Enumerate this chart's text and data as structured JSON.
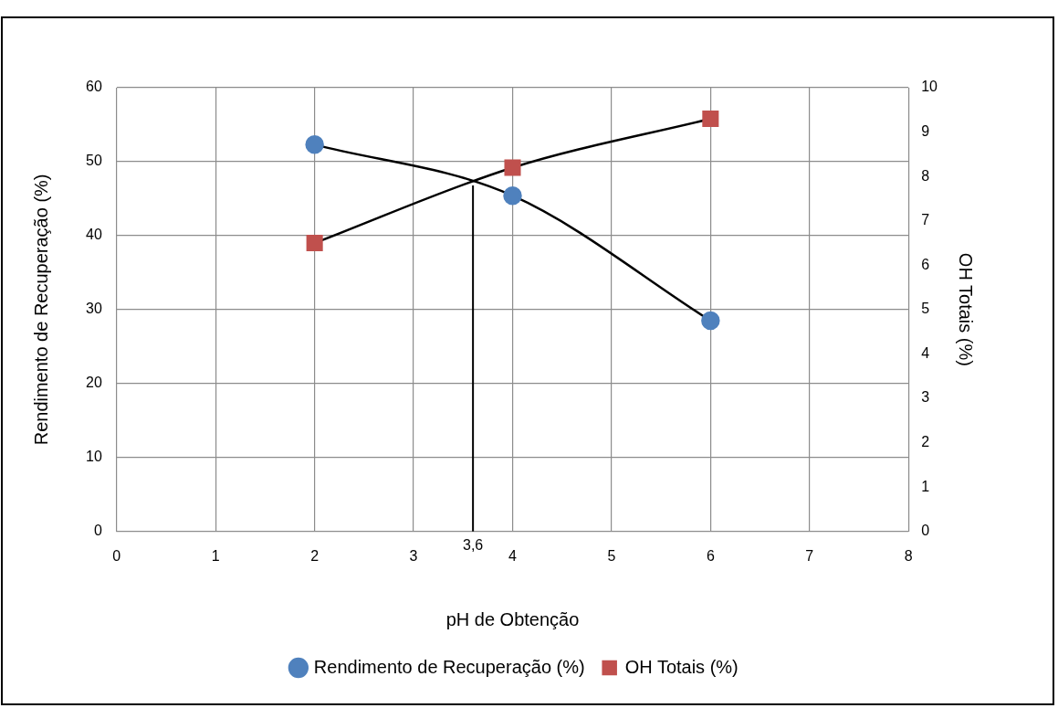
{
  "chart_data": {
    "type": "line",
    "xlabel": "pH de Obtenção",
    "ylabel": "Rendimento de Recuperação (%)",
    "y2label": "OH Totais (%)",
    "x": [
      2,
      4,
      6
    ],
    "series": [
      {
        "name": "Rendimento de Recuperação (%)",
        "color": "#4f81bd",
        "marker": "circle",
        "values": [
          52.3,
          45.4,
          28.5
        ]
      },
      {
        "name": "OH Totais (%)",
        "color": "#c0504d",
        "marker": "square",
        "axis": "y2",
        "values": [
          6.5,
          8.2,
          9.3
        ]
      }
    ],
    "xlim": [
      0,
      8
    ],
    "xticks": [
      0,
      1,
      2,
      3,
      4,
      5,
      6,
      7,
      8
    ],
    "ylim": [
      0,
      60
    ],
    "yticks": [
      0,
      10,
      20,
      30,
      40,
      50,
      60
    ],
    "y2lim": [
      0,
      10
    ],
    "y2ticks": [
      0,
      1,
      2,
      3,
      4,
      5,
      6,
      7,
      8,
      9,
      10
    ],
    "ref_lines": [
      {
        "axis": "x",
        "value": 3.6,
        "label": "3,6",
        "color": "#000000"
      }
    ],
    "grid": true,
    "legend": "bottom"
  }
}
